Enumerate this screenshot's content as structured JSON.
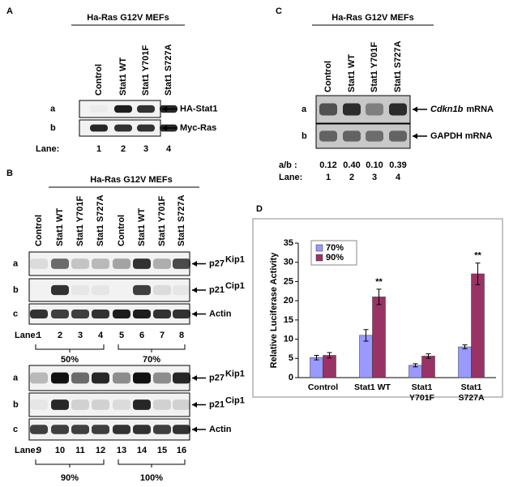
{
  "panels": {
    "A": {
      "label": "A",
      "header": "Ha-Ras G12V  MEFs",
      "columns": [
        "Control",
        "Stat1 WT",
        "Stat1 Y701F",
        "Stat1 S727A"
      ],
      "rows": [
        {
          "letter": "a",
          "name": "HA-Stat1"
        },
        {
          "letter": "b",
          "name": "Myc-Ras"
        }
      ],
      "lane_label": "Lane:",
      "lanes": [
        1,
        2,
        3,
        4
      ]
    },
    "B": {
      "label": "B",
      "header": "Ha-Ras G12V MEFs",
      "columns": [
        "Control",
        "Stat1 WT",
        "Stat1 Y701F",
        "Stat1 S727A",
        "Control",
        "Stat1 WT",
        "Stat1 Y701F",
        "Stat1 S727A"
      ],
      "blots": [
        {
          "rows": [
            {
              "letter": "a",
              "name": "p27",
              "sup": "Kip1"
            },
            {
              "letter": "b",
              "name": "p21",
              "sup": "Cip1"
            },
            {
              "letter": "c",
              "name": "Actin"
            }
          ],
          "lane_label": "Lane:",
          "lanes": [
            1,
            2,
            3,
            4,
            5,
            6,
            7,
            8
          ],
          "groups": [
            "50%",
            "70%"
          ]
        },
        {
          "rows": [
            {
              "letter": "a",
              "name": "p27",
              "sup": "Kip1"
            },
            {
              "letter": "b",
              "name": "p21",
              "sup": "Cip1"
            },
            {
              "letter": "c",
              "name": "Actin"
            }
          ],
          "lane_label": "Lane:",
          "lanes": [
            9,
            10,
            11,
            12,
            13,
            14,
            15,
            16
          ],
          "groups": [
            "90%",
            "100%"
          ]
        }
      ]
    },
    "C": {
      "label": "C",
      "header": "Ha-Ras G12V  MEFs",
      "columns": [
        "Control",
        "Stat1 WT",
        "Stat1 Y701F",
        "Stat1 S727A"
      ],
      "rows": [
        {
          "letter": "a",
          "name": "Cdkn1b",
          "suffix": "mRNA"
        },
        {
          "letter": "b",
          "name": "GAPDH mRNA"
        }
      ],
      "ratio_label": "a/b :",
      "ratios": [
        "0.12",
        "0.40",
        "0.10",
        "0.39"
      ],
      "lane_label": "Lane:",
      "lanes": [
        1,
        2,
        3,
        4
      ]
    }
  },
  "chart_data": {
    "type": "bar",
    "label": "D",
    "ylabel": "Relative Luciferase Activity",
    "categories": [
      "Control",
      "Stat1 WT",
      "Stat1\nY701F",
      "Stat1\nS727A"
    ],
    "series": [
      {
        "name": "70%",
        "color": "#9999ff",
        "values": [
          5.2,
          11,
          3.2,
          8
        ],
        "errors": [
          0.6,
          1.5,
          0.4,
          0.5
        ]
      },
      {
        "name": "90%",
        "color": "#993366",
        "values": [
          5.8,
          21,
          5.6,
          27
        ],
        "errors": [
          0.7,
          2,
          0.6,
          2.8
        ]
      }
    ],
    "annotations": [
      "**",
      "**"
    ],
    "ylim": [
      0,
      35
    ],
    "yticks": [
      0,
      5,
      10,
      15,
      20,
      25,
      30,
      35
    ],
    "grid": false,
    "legend": "upper left"
  }
}
